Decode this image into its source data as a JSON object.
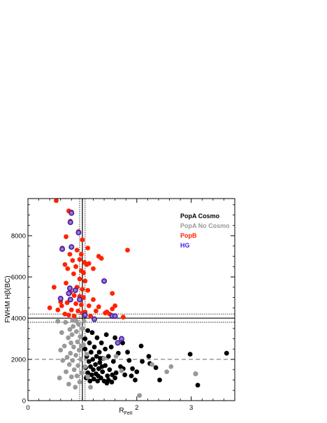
{
  "chart_data": {
    "type": "scatter",
    "xlabel": "R",
    "xlabel_sub": "FeII",
    "ylabel": "FWHM Hβ(BC)",
    "xlim": [
      0,
      3.8
    ],
    "ylim": [
      0,
      9800
    ],
    "xticks": [
      0,
      1,
      2,
      3
    ],
    "xtick_labels": [
      "0",
      "1",
      "2",
      "3"
    ],
    "yticks": [
      0,
      2000,
      4000,
      6000,
      8000
    ],
    "ytick_labels": [
      "0",
      "2000",
      "4000",
      "6000",
      "8000"
    ],
    "grid": false,
    "legend_position": "top-right",
    "reference_lines": {
      "vertical_solid": 1.0,
      "vertical_dotted": [
        0.95,
        1.05
      ],
      "horizontal_solid": 4000,
      "horizontal_dotted": [
        3800,
        4200
      ],
      "horizontal_dashed": 2000
    },
    "series": [
      {
        "name": "PopA Cosmo",
        "color": "#000000",
        "points": [
          [
            3.65,
            2300
          ],
          [
            3.12,
            750
          ],
          [
            3.08,
            1300
          ],
          [
            2.98,
            2250
          ],
          [
            2.42,
            1000
          ],
          [
            2.35,
            1600
          ],
          [
            2.24,
            1800
          ],
          [
            2.22,
            2150
          ],
          [
            2.1,
            1900
          ],
          [
            2.08,
            2650
          ],
          [
            1.97,
            1000
          ],
          [
            1.92,
            1550
          ],
          [
            1.86,
            1950
          ],
          [
            1.83,
            2350
          ],
          [
            1.78,
            1250
          ],
          [
            1.74,
            2800
          ],
          [
            1.7,
            1650
          ],
          [
            1.66,
            2300
          ],
          [
            1.62,
            1350
          ],
          [
            1.6,
            3050
          ],
          [
            1.57,
            1900
          ],
          [
            1.54,
            900
          ],
          [
            1.53,
            2600
          ],
          [
            1.5,
            1500
          ],
          [
            1.48,
            2150
          ],
          [
            1.46,
            1200
          ],
          [
            1.44,
            3200
          ],
          [
            1.42,
            2500
          ],
          [
            1.42,
            1700
          ],
          [
            1.4,
            950
          ],
          [
            1.38,
            2050
          ],
          [
            1.37,
            1400
          ],
          [
            1.35,
            2800
          ],
          [
            1.34,
            1100
          ],
          [
            1.32,
            1850
          ],
          [
            1.31,
            2350
          ],
          [
            1.3,
            1550
          ],
          [
            1.28,
            950
          ],
          [
            1.27,
            3050
          ],
          [
            1.26,
            2150
          ],
          [
            1.25,
            1300
          ],
          [
            1.24,
            1750
          ],
          [
            1.22,
            2600
          ],
          [
            1.21,
            1050
          ],
          [
            1.2,
            1500
          ],
          [
            1.19,
            2000
          ],
          [
            1.18,
            3300
          ],
          [
            1.17,
            1250
          ],
          [
            1.16,
            2350
          ],
          [
            1.15,
            1650
          ],
          [
            1.14,
            950
          ],
          [
            1.13,
            2800
          ],
          [
            1.12,
            1900
          ],
          [
            1.1,
            1350
          ],
          [
            1.1,
            3400
          ],
          [
            1.08,
            2150
          ],
          [
            1.07,
            1100
          ],
          [
            1.06,
            1600
          ],
          [
            1.05,
            2500
          ],
          [
            1.05,
            3000
          ],
          [
            1.45,
            850
          ],
          [
            1.6,
            1100
          ],
          [
            1.55,
            1250
          ],
          [
            1.48,
            1000
          ],
          [
            1.75,
            1550
          ],
          [
            1.9,
            1200
          ],
          [
            2.0,
            1400
          ],
          [
            1.36,
            1650
          ],
          [
            1.29,
            1200
          ],
          [
            1.33,
            2050
          ]
        ]
      },
      {
        "name": "PopA No Cosmo",
        "color": "#999999",
        "points": [
          [
            3.08,
            1300
          ],
          [
            2.63,
            1650
          ],
          [
            2.55,
            1400
          ],
          [
            2.28,
            1750
          ],
          [
            2.05,
            250
          ],
          [
            1.72,
            1450
          ],
          [
            1.62,
            2150
          ],
          [
            1.4,
            2050
          ],
          [
            1.15,
            650
          ],
          [
            1.1,
            1150
          ],
          [
            1.08,
            2250
          ],
          [
            1.05,
            1650
          ],
          [
            1.02,
            2700
          ],
          [
            1.0,
            3500
          ],
          [
            0.99,
            1350
          ],
          [
            0.97,
            2000
          ],
          [
            0.96,
            3100
          ],
          [
            0.95,
            900
          ],
          [
            0.94,
            2450
          ],
          [
            0.93,
            3700
          ],
          [
            0.92,
            1700
          ],
          [
            0.91,
            2850
          ],
          [
            0.9,
            1200
          ],
          [
            0.89,
            3350
          ],
          [
            0.88,
            2200
          ],
          [
            0.87,
            650
          ],
          [
            0.86,
            3900
          ],
          [
            0.85,
            1500
          ],
          [
            0.84,
            2600
          ],
          [
            0.83,
            3600
          ],
          [
            0.82,
            1950
          ],
          [
            0.81,
            3200
          ],
          [
            0.8,
            1150
          ],
          [
            0.79,
            2800
          ],
          [
            0.78,
            2300
          ],
          [
            0.77,
            3450
          ],
          [
            0.76,
            1750
          ],
          [
            0.75,
            800
          ],
          [
            0.74,
            3050
          ],
          [
            0.72,
            2100
          ],
          [
            0.7,
            1400
          ],
          [
            0.69,
            3800
          ],
          [
            0.67,
            2650
          ],
          [
            0.64,
            1950
          ],
          [
            0.62,
            3300
          ],
          [
            0.6,
            2450
          ],
          [
            0.58,
            1100
          ],
          [
            0.55,
            3850
          ],
          [
            1.03,
            3850
          ],
          [
            0.98,
            2650
          ],
          [
            0.89,
            3850
          ],
          [
            0.82,
            3900
          ]
        ]
      },
      {
        "name": "PopB",
        "color": "#ff2200",
        "points": [
          [
            0.52,
            9700
          ],
          [
            0.75,
            9200
          ],
          [
            0.8,
            9150
          ],
          [
            0.78,
            8700
          ],
          [
            0.93,
            8200
          ],
          [
            0.7,
            7950
          ],
          [
            1.0,
            7800
          ],
          [
            1.83,
            7300
          ],
          [
            0.63,
            7400
          ],
          [
            0.9,
            7300
          ],
          [
            0.77,
            7100
          ],
          [
            1.1,
            7400
          ],
          [
            0.98,
            7100
          ],
          [
            0.95,
            6850
          ],
          [
            1.04,
            6700
          ],
          [
            1.08,
            6600
          ],
          [
            1.12,
            6650
          ],
          [
            0.68,
            6600
          ],
          [
            0.82,
            6800
          ],
          [
            0.88,
            6500
          ],
          [
            0.98,
            6300
          ],
          [
            1.02,
            6200
          ],
          [
            1.2,
            6400
          ],
          [
            1.3,
            7000
          ],
          [
            0.73,
            6400
          ],
          [
            0.84,
            6150
          ],
          [
            1.35,
            6900
          ],
          [
            0.95,
            5900
          ],
          [
            1.05,
            5800
          ],
          [
            0.7,
            5700
          ],
          [
            0.9,
            5500
          ],
          [
            1.0,
            5400
          ],
          [
            1.1,
            5350
          ],
          [
            1.55,
            5200
          ],
          [
            0.48,
            5500
          ],
          [
            0.78,
            5250
          ],
          [
            0.85,
            5100
          ],
          [
            0.95,
            5050
          ],
          [
            1.02,
            5000
          ],
          [
            1.2,
            4900
          ],
          [
            0.6,
            4800
          ],
          [
            0.72,
            4750
          ],
          [
            0.88,
            4700
          ],
          [
            0.98,
            4650
          ],
          [
            1.12,
            4600
          ],
          [
            1.6,
            4600
          ],
          [
            0.4,
            4500
          ],
          [
            0.55,
            4400
          ],
          [
            0.8,
            4400
          ],
          [
            0.92,
            4350
          ],
          [
            1.05,
            4300
          ],
          [
            1.45,
            4300
          ],
          [
            1.5,
            4200
          ],
          [
            0.75,
            4150
          ],
          [
            0.85,
            4100
          ],
          [
            1.0,
            4250
          ],
          [
            1.25,
            4350
          ],
          [
            1.75,
            4050
          ],
          [
            0.68,
            4200
          ],
          [
            1.3,
            4550
          ],
          [
            1.55,
            4450
          ],
          [
            1.42,
            4250
          ],
          [
            1.15,
            4100
          ],
          [
            0.62,
            4600
          ]
        ]
      },
      {
        "name": "HG",
        "color": "#6633cc",
        "points": [
          [
            0.8,
            9100
          ],
          [
            0.78,
            8650
          ],
          [
            0.93,
            8150
          ],
          [
            0.63,
            7350
          ],
          [
            0.8,
            7450
          ],
          [
            1.4,
            5800
          ],
          [
            0.77,
            5450
          ],
          [
            0.87,
            5350
          ],
          [
            0.75,
            5200
          ],
          [
            0.6,
            4950
          ],
          [
            0.95,
            4900
          ],
          [
            1.05,
            4150
          ],
          [
            1.55,
            4100
          ],
          [
            0.78,
            4900
          ],
          [
            1.6,
            4100
          ],
          [
            1.22,
            3950
          ],
          [
            1.65,
            2800
          ],
          [
            1.72,
            3000
          ]
        ]
      }
    ]
  }
}
